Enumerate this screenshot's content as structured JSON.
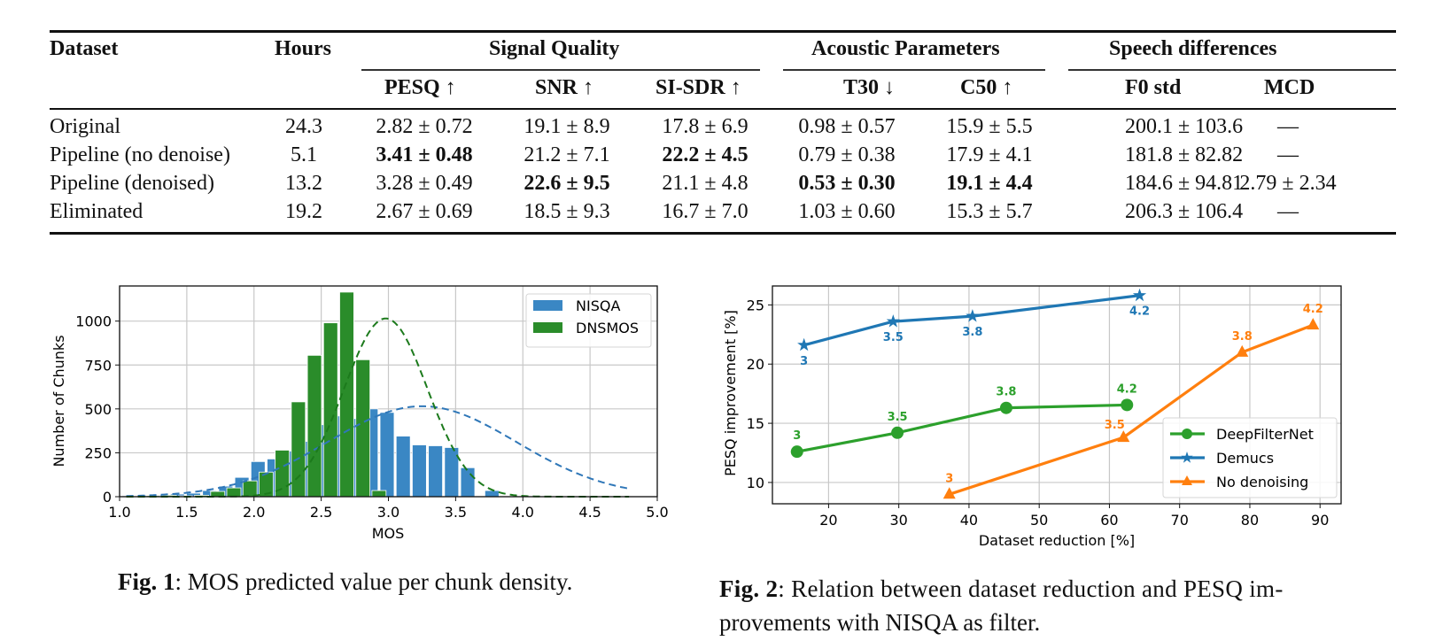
{
  "table": {
    "group_headers": [
      "Signal Quality",
      "Acoustic Parameters",
      "Speech differences"
    ],
    "columns": {
      "dataset": "Dataset",
      "hours": "Hours",
      "pesq": "PESQ ↑",
      "snr": "SNR ↑",
      "sisdr": "SI-SDR ↑",
      "t30": "T30 ↓",
      "c50": "C50 ↑",
      "f0": "F0 std",
      "mcd": "MCD"
    },
    "rows": [
      {
        "dataset": "Original",
        "hours": "24.3",
        "pesq": "2.82 ± 0.72",
        "snr": "19.1 ± 8.9",
        "sisdr": "17.8 ± 6.9",
        "t30": "0.98 ± 0.57",
        "c50": "15.9 ± 5.5",
        "f0": "200.1 ± 103.6",
        "mcd": "—",
        "bold": []
      },
      {
        "dataset": "Pipeline (no denoise)",
        "hours": "5.1",
        "pesq": "3.41 ± 0.48",
        "snr": "21.2 ± 7.1",
        "sisdr": "22.2 ± 4.5",
        "t30": "0.79 ± 0.38",
        "c50": "17.9 ± 4.1",
        "f0": "181.8 ± 82.82",
        "mcd": "—",
        "bold": [
          "pesq",
          "sisdr"
        ]
      },
      {
        "dataset": "Pipeline (denoised)",
        "hours": "13.2",
        "pesq": "3.28 ± 0.49",
        "snr": "22.6 ± 9.5",
        "sisdr": "21.1 ± 4.8",
        "t30": "0.53 ± 0.30",
        "c50": "19.1 ± 4.4",
        "f0": "184.6 ± 94.81",
        "mcd": "2.79 ± 2.34",
        "bold": [
          "snr",
          "t30",
          "c50"
        ]
      },
      {
        "dataset": "Eliminated",
        "hours": "19.2",
        "pesq": "2.67 ± 0.69",
        "snr": "18.5 ± 9.3",
        "sisdr": "16.7 ± 7.0",
        "t30": "1.03 ± 0.60",
        "c50": "15.3 ± 5.7",
        "f0": "206.3 ± 106.4",
        "mcd": "—",
        "bold": []
      }
    ]
  },
  "figures": {
    "fig1": {
      "label": "Fig. 1",
      "caption": ": MOS predicted value per chunk density."
    },
    "fig2": {
      "label": "Fig. 2",
      "caption": ":  Relation between dataset reduction and PESQ im-",
      "caption_line2": "provements with NISQA as filter."
    }
  },
  "chart_data": [
    {
      "type": "bar",
      "title": "",
      "xlabel": "MOS",
      "ylabel": "Number of Chunks",
      "xlim": [
        1.0,
        5.0
      ],
      "ylim": [
        0,
        1200
      ],
      "xticks": [
        "1.0",
        "1.5",
        "2.0",
        "2.5",
        "3.0",
        "3.5",
        "4.0",
        "4.5",
        "5.0"
      ],
      "yticks": [
        "0",
        "250",
        "500",
        "750",
        "1000"
      ],
      "grid": true,
      "legend": "top-right",
      "series": [
        {
          "name": "NISQA",
          "color": "#3a87c4",
          "x": [
            1.07,
            1.19,
            1.31,
            1.43,
            1.55,
            1.67,
            1.79,
            1.91,
            2.03,
            2.15,
            2.27,
            2.39,
            2.51,
            2.63,
            2.75,
            2.87,
            2.99,
            3.11,
            3.23,
            3.35,
            3.47,
            3.59,
            3.77,
            3.95,
            4.13,
            4.31,
            4.49,
            4.67
          ],
          "values": [
            5,
            8,
            10,
            15,
            20,
            35,
            60,
            110,
            200,
            215,
            260,
            315,
            410,
            460,
            445,
            500,
            480,
            345,
            295,
            290,
            280,
            165,
            35,
            0,
            0,
            0,
            0,
            0
          ],
          "fit": {
            "style": "dashed",
            "mean": 3.25,
            "peak": 515,
            "sd": 0.7
          }
        },
        {
          "name": "DNSMOS",
          "color": "#2a8c2a",
          "x": [
            1.13,
            1.25,
            1.37,
            1.49,
            1.61,
            1.73,
            1.85,
            1.97,
            2.09,
            2.21,
            2.33,
            2.45,
            2.57,
            2.69,
            2.81,
            2.93,
            3.05,
            3.17,
            3.29,
            3.41,
            3.53,
            3.65
          ],
          "values": [
            4,
            6,
            8,
            5,
            8,
            30,
            50,
            90,
            140,
            265,
            540,
            805,
            990,
            1165,
            780,
            35,
            0,
            0,
            0,
            0,
            0,
            0
          ],
          "fit": {
            "style": "dashed",
            "mean": 2.98,
            "peak": 1015,
            "sd": 0.31
          }
        }
      ]
    },
    {
      "type": "line",
      "title": "",
      "xlabel": "Dataset reduction [%]",
      "ylabel": "PESQ improvement [%]",
      "xlim": [
        12,
        93
      ],
      "ylim": [
        8.2,
        26.6
      ],
      "xticks": [
        "20",
        "30",
        "40",
        "50",
        "60",
        "70",
        "80",
        "90"
      ],
      "yticks": [
        "10",
        "15",
        "20",
        "25"
      ],
      "grid": true,
      "legend": "bottom-right",
      "series": [
        {
          "name": "DeepFilterNet",
          "marker": "circle",
          "color": "#2ca02c",
          "x": [
            15.5,
            29.8,
            45.3,
            62.5
          ],
          "y": [
            12.6,
            14.2,
            16.3,
            16.55
          ],
          "point_labels": [
            "3",
            "3.5",
            "3.8",
            "4.2"
          ]
        },
        {
          "name": "Demucs",
          "marker": "star",
          "color": "#1f77b4",
          "x": [
            16.5,
            29.2,
            40.5,
            64.3
          ],
          "y": [
            21.6,
            23.6,
            24.05,
            25.8
          ],
          "point_labels": [
            "3",
            "3.5",
            "3.8",
            "4.2"
          ]
        },
        {
          "name": "No denoising",
          "marker": "triangle",
          "color": "#ff7f0e",
          "x": [
            37.2,
            62.0,
            78.9,
            89.0
          ],
          "y": [
            9.0,
            13.8,
            21.0,
            23.3
          ],
          "point_labels": [
            "3",
            "3.5",
            "3.8",
            "4.2"
          ]
        }
      ]
    }
  ]
}
